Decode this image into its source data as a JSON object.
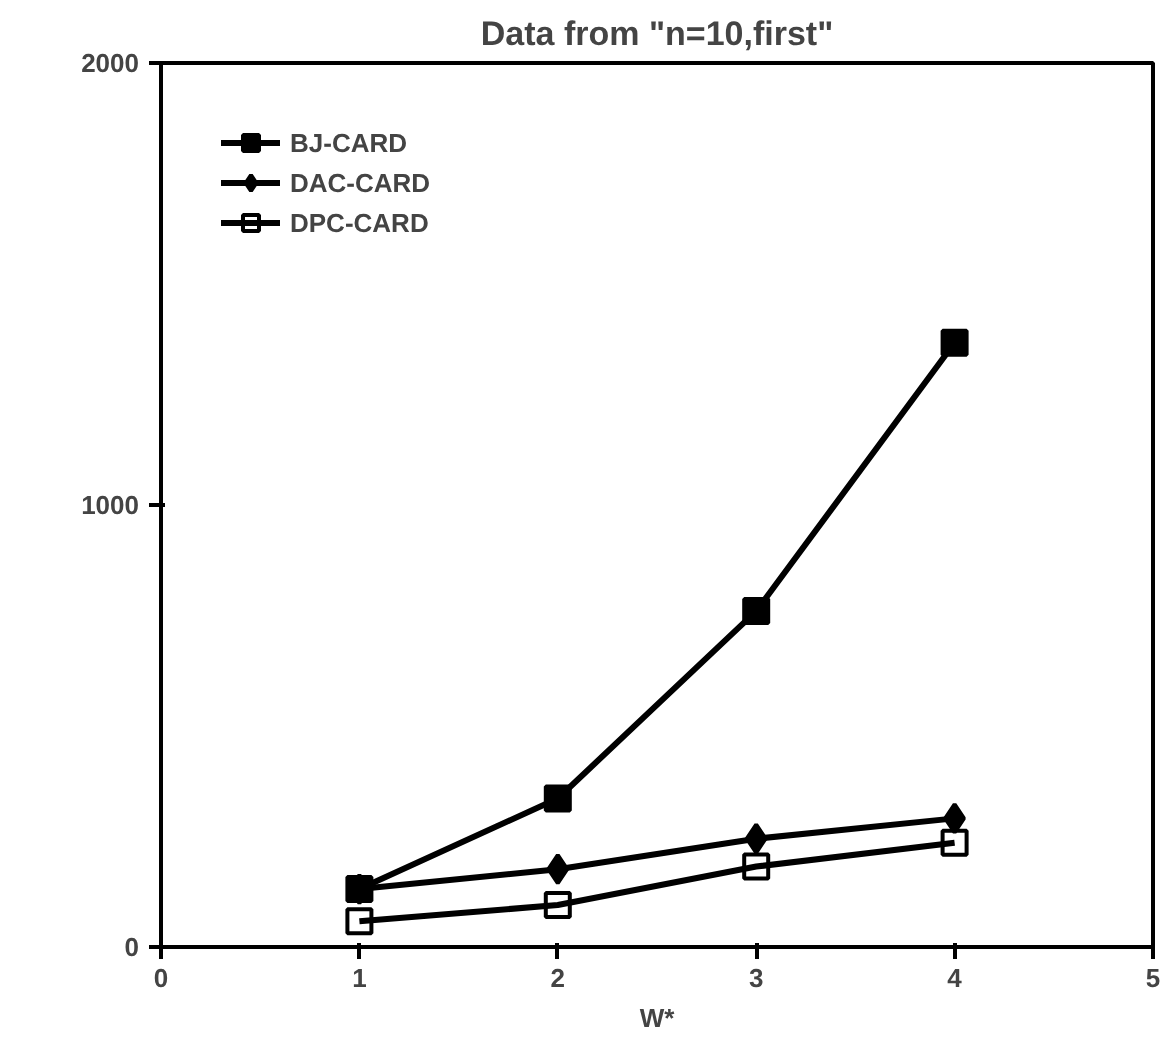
{
  "chart_data": {
    "type": "line",
    "title": "Data from \"n=10,first\"",
    "xlabel": "W*",
    "x": [
      1,
      2,
      3,
      4
    ],
    "series": [
      {
        "name": "BJ-CARD",
        "color": "#000000",
        "marker": "square",
        "values": [
          131,
          336,
          760,
          1367
        ]
      },
      {
        "name": "DAC-CARD",
        "color": "#000000",
        "marker": "diamond",
        "values": [
          131,
          176,
          245,
          291
        ]
      },
      {
        "name": "DPC-CARD",
        "color": "#000000",
        "marker": "square_open",
        "values": [
          58,
          95,
          182,
          236
        ]
      }
    ],
    "xlim": [
      0,
      5
    ],
    "xticks": [
      0,
      1,
      2,
      3,
      4,
      5
    ],
    "ylim": [
      0,
      2000
    ],
    "yticks": [
      0,
      1000,
      2000
    ],
    "grid": false,
    "legend": "top left",
    "line_style": "solid"
  }
}
